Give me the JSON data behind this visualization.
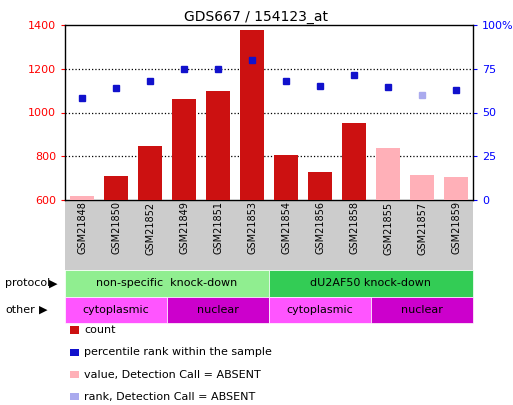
{
  "title": "GDS667 / 154123_at",
  "samples": [
    "GSM21848",
    "GSM21850",
    "GSM21852",
    "GSM21849",
    "GSM21851",
    "GSM21853",
    "GSM21854",
    "GSM21856",
    "GSM21858",
    "GSM21855",
    "GSM21857",
    "GSM21859"
  ],
  "bar_values": [
    620,
    710,
    845,
    1060,
    1100,
    1375,
    805,
    730,
    950,
    840,
    715,
    705
  ],
  "bar_absent": [
    true,
    false,
    false,
    false,
    false,
    false,
    false,
    false,
    false,
    true,
    true,
    true
  ],
  "rank_values": [
    1065,
    1110,
    1145,
    1200,
    1200,
    1240,
    1145,
    1120,
    1170,
    1115,
    1080,
    1105
  ],
  "rank_absent": [
    false,
    false,
    false,
    false,
    false,
    false,
    false,
    false,
    false,
    false,
    true,
    false
  ],
  "ylim_left": [
    600,
    1400
  ],
  "ylim_right": [
    0,
    100
  ],
  "left_ticks": [
    600,
    800,
    1000,
    1200,
    1400
  ],
  "right_ticks": [
    0,
    25,
    50,
    75,
    100
  ],
  "right_tick_labels": [
    "0",
    "25",
    "50",
    "75",
    "100%"
  ],
  "protocol_groups": [
    {
      "label": "non-specific  knock-down",
      "start": 0,
      "end": 6,
      "color": "#90EE90"
    },
    {
      "label": "dU2AF50 knock-down",
      "start": 6,
      "end": 12,
      "color": "#33CC55"
    }
  ],
  "other_groups": [
    {
      "label": "cytoplasmic",
      "start": 0,
      "end": 3,
      "color": "#FF55FF"
    },
    {
      "label": "nuclear",
      "start": 3,
      "end": 6,
      "color": "#CC00CC"
    },
    {
      "label": "cytoplasmic",
      "start": 6,
      "end": 9,
      "color": "#FF55FF"
    },
    {
      "label": "nuclear",
      "start": 9,
      "end": 12,
      "color": "#CC00CC"
    }
  ],
  "bar_color_present": "#CC1111",
  "bar_color_absent": "#FFB0B8",
  "rank_color_present": "#1111CC",
  "rank_color_absent": "#AAAAEE",
  "legend_items": [
    {
      "label": "count",
      "color": "#CC1111"
    },
    {
      "label": "percentile rank within the sample",
      "color": "#1111CC"
    },
    {
      "label": "value, Detection Call = ABSENT",
      "color": "#FFB0B8"
    },
    {
      "label": "rank, Detection Call = ABSENT",
      "color": "#AAAAEE"
    }
  ],
  "protocol_label": "protocol",
  "other_label": "other"
}
